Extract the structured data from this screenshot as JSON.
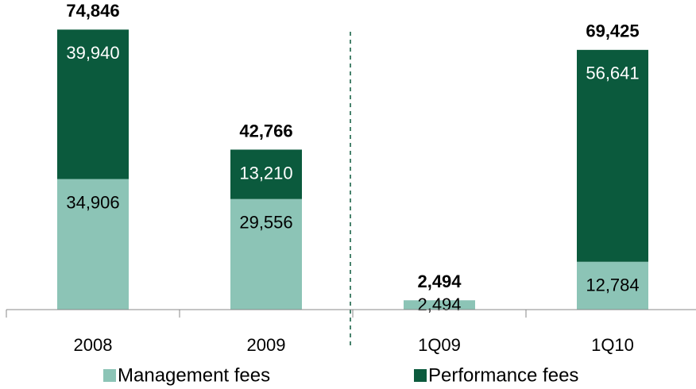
{
  "chart_data": {
    "type": "bar",
    "stacked": true,
    "categories": [
      "2008",
      "2009",
      "1Q09",
      "1Q10"
    ],
    "series": [
      {
        "name": "Management fees",
        "color": "#8cc4b6",
        "values": [
          34906,
          29556,
          2494,
          12784
        ],
        "value_labels": [
          "34,906",
          "29,556",
          "2,494",
          "12,784"
        ],
        "label_color": "#000000"
      },
      {
        "name": "Performance fees",
        "color": "#0b5a3d",
        "values": [
          39940,
          13210,
          null,
          56641
        ],
        "value_labels": [
          "39,940",
          "13,210",
          null,
          "56,641"
        ],
        "label_color": "#ffffff"
      }
    ],
    "totals": {
      "values": [
        74846,
        42766,
        2494,
        69425
      ],
      "value_labels": [
        "74,846",
        "42,766",
        "2,494",
        "69,425"
      ]
    },
    "ylim": [
      0,
      80000
    ]
  }
}
